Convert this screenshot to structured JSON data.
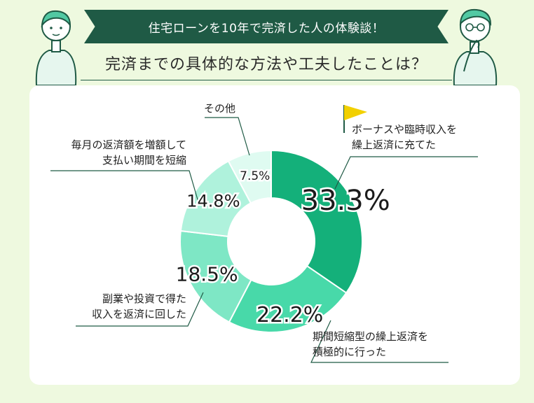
{
  "banner": {
    "text": "住宅ローンを10年で完済した人の体験談！"
  },
  "headline": {
    "text": "完済までの具体的な方法や工夫したことは？"
  },
  "colors": {
    "banner_bg": "#1f5a45",
    "page_bg": "#eef9df",
    "flag": "#f2d000",
    "leader": "#1f5a45"
  },
  "chart_data": {
    "type": "pie",
    "donut": true,
    "labels": [
      "ボーナスや臨時収入を\n繰上返済に充てた",
      "期間短縮型の繰上返済を\n積極的に行った",
      "副業や投資で得た\n収入を返済に回した",
      "毎月の返済額を増額して\n支払い期間を短縮",
      "その他"
    ],
    "values": [
      33.3,
      22.2,
      18.5,
      14.8,
      7.5
    ],
    "value_labels": [
      "33.3%",
      "22.2%",
      "18.5%",
      "14.8%",
      "7.5%"
    ],
    "colors": [
      "#14b07a",
      "#48d9a9",
      "#7ee7c5",
      "#aff2dc",
      "#dffbf1"
    ],
    "highlight_icon": "flag-icon"
  }
}
